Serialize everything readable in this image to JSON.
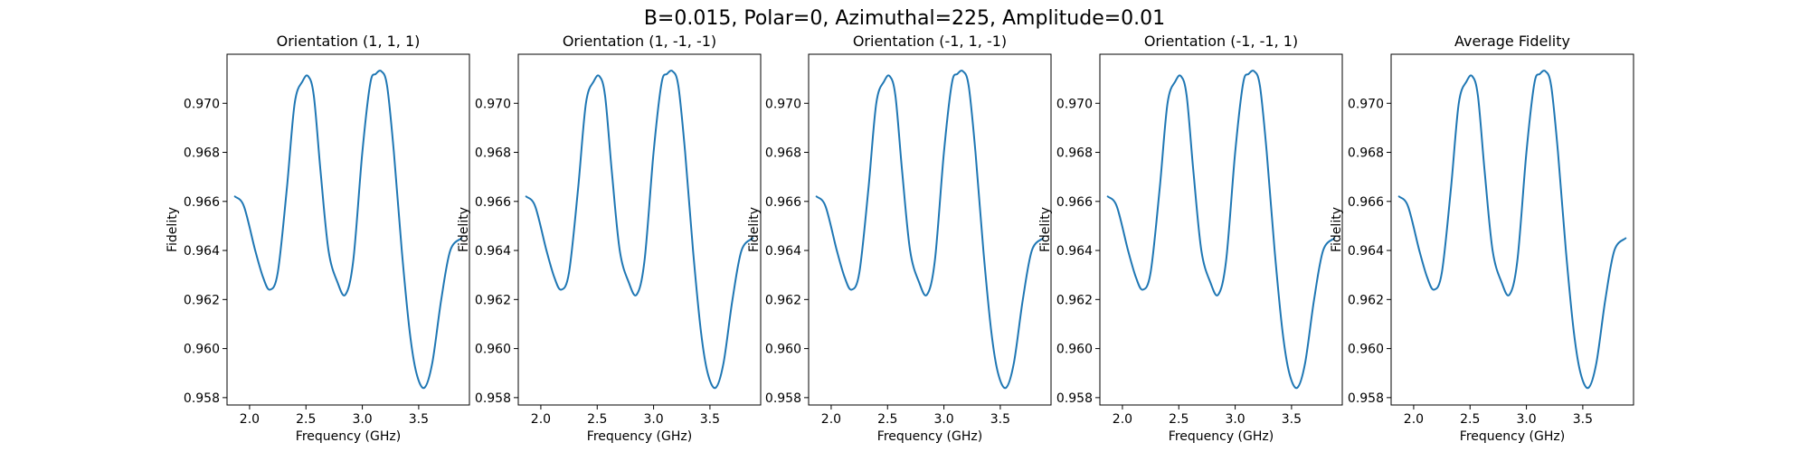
{
  "figure": {
    "suptitle": "B=0.015, Polar=0, Azimuthal=225, Amplitude=0.01"
  },
  "chart_data": [
    {
      "type": "line",
      "title": "Orientation (1, 1, 1)",
      "xlabel": "Frequency (GHz)",
      "ylabel": "Fidelity",
      "xlim": [
        1.8,
        3.95
      ],
      "ylim": [
        0.9577,
        0.972
      ],
      "xticks": [
        "2.0",
        "2.5",
        "3.0",
        "3.5"
      ],
      "yticks": [
        "0.958",
        "0.960",
        "0.962",
        "0.964",
        "0.966",
        "0.968",
        "0.970"
      ],
      "grid": false,
      "series": [
        {
          "color": "#1f77b4",
          "x": [
            1.87,
            1.95,
            2.05,
            2.12,
            2.18,
            2.25,
            2.33,
            2.4,
            2.47,
            2.52,
            2.57,
            2.63,
            2.7,
            2.78,
            2.85,
            2.92,
            3.0,
            3.07,
            3.12,
            3.17,
            3.22,
            3.28,
            3.35,
            3.42,
            3.48,
            3.55,
            3.62,
            3.7,
            3.78,
            3.88
          ],
          "y": [
            0.9662,
            0.9658,
            0.964,
            0.9629,
            0.9624,
            0.9631,
            0.9665,
            0.97,
            0.9709,
            0.9711,
            0.9703,
            0.9672,
            0.964,
            0.9627,
            0.9622,
            0.9636,
            0.968,
            0.9708,
            0.9712,
            0.9713,
            0.9707,
            0.968,
            0.964,
            0.9607,
            0.959,
            0.9584,
            0.9594,
            0.962,
            0.964,
            0.9645
          ]
        }
      ]
    },
    {
      "type": "line",
      "title": "Orientation (1, -1, -1)",
      "xlabel": "Frequency (GHz)",
      "ylabel": "Fidelity",
      "xlim": [
        1.8,
        3.95
      ],
      "ylim": [
        0.9577,
        0.972
      ],
      "xticks": [
        "2.0",
        "2.5",
        "3.0",
        "3.5"
      ],
      "yticks": [
        "0.958",
        "0.960",
        "0.962",
        "0.964",
        "0.966",
        "0.968",
        "0.970"
      ],
      "grid": false,
      "series": [
        {
          "color": "#1f77b4",
          "x": [
            1.87,
            1.95,
            2.05,
            2.12,
            2.18,
            2.25,
            2.33,
            2.4,
            2.47,
            2.52,
            2.57,
            2.63,
            2.7,
            2.78,
            2.85,
            2.92,
            3.0,
            3.07,
            3.12,
            3.17,
            3.22,
            3.28,
            3.35,
            3.42,
            3.48,
            3.55,
            3.62,
            3.7,
            3.78,
            3.88
          ],
          "y": [
            0.9662,
            0.9658,
            0.964,
            0.9629,
            0.9624,
            0.9631,
            0.9665,
            0.97,
            0.9709,
            0.9711,
            0.9703,
            0.9672,
            0.964,
            0.9627,
            0.9622,
            0.9636,
            0.968,
            0.9708,
            0.9712,
            0.9713,
            0.9707,
            0.968,
            0.964,
            0.9607,
            0.959,
            0.9584,
            0.9594,
            0.962,
            0.964,
            0.9645
          ]
        }
      ]
    },
    {
      "type": "line",
      "title": "Orientation (-1, 1, -1)",
      "xlabel": "Frequency (GHz)",
      "ylabel": "Fidelity",
      "xlim": [
        1.8,
        3.95
      ],
      "ylim": [
        0.9577,
        0.972
      ],
      "xticks": [
        "2.0",
        "2.5",
        "3.0",
        "3.5"
      ],
      "yticks": [
        "0.958",
        "0.960",
        "0.962",
        "0.964",
        "0.966",
        "0.968",
        "0.970"
      ],
      "grid": false,
      "series": [
        {
          "color": "#1f77b4",
          "x": [
            1.87,
            1.95,
            2.05,
            2.12,
            2.18,
            2.25,
            2.33,
            2.4,
            2.47,
            2.52,
            2.57,
            2.63,
            2.7,
            2.78,
            2.85,
            2.92,
            3.0,
            3.07,
            3.12,
            3.17,
            3.22,
            3.28,
            3.35,
            3.42,
            3.48,
            3.55,
            3.62,
            3.7,
            3.78,
            3.88
          ],
          "y": [
            0.9662,
            0.9658,
            0.964,
            0.9629,
            0.9624,
            0.9631,
            0.9665,
            0.97,
            0.9709,
            0.9711,
            0.9703,
            0.9672,
            0.964,
            0.9627,
            0.9622,
            0.9636,
            0.968,
            0.9708,
            0.9712,
            0.9713,
            0.9707,
            0.968,
            0.964,
            0.9607,
            0.959,
            0.9584,
            0.9594,
            0.962,
            0.964,
            0.9645
          ]
        }
      ]
    },
    {
      "type": "line",
      "title": "Orientation (-1, -1, 1)",
      "xlabel": "Frequency (GHz)",
      "ylabel": "Fidelity",
      "xlim": [
        1.8,
        3.95
      ],
      "ylim": [
        0.9577,
        0.972
      ],
      "xticks": [
        "2.0",
        "2.5",
        "3.0",
        "3.5"
      ],
      "yticks": [
        "0.958",
        "0.960",
        "0.962",
        "0.964",
        "0.966",
        "0.968",
        "0.970"
      ],
      "grid": false,
      "series": [
        {
          "color": "#1f77b4",
          "x": [
            1.87,
            1.95,
            2.05,
            2.12,
            2.18,
            2.25,
            2.33,
            2.4,
            2.47,
            2.52,
            2.57,
            2.63,
            2.7,
            2.78,
            2.85,
            2.92,
            3.0,
            3.07,
            3.12,
            3.17,
            3.22,
            3.28,
            3.35,
            3.42,
            3.48,
            3.55,
            3.62,
            3.7,
            3.78,
            3.88
          ],
          "y": [
            0.9662,
            0.9658,
            0.964,
            0.9629,
            0.9624,
            0.9631,
            0.9665,
            0.97,
            0.9709,
            0.9711,
            0.9703,
            0.9672,
            0.964,
            0.9627,
            0.9622,
            0.9636,
            0.968,
            0.9708,
            0.9712,
            0.9713,
            0.9707,
            0.968,
            0.964,
            0.9607,
            0.959,
            0.9584,
            0.9594,
            0.962,
            0.964,
            0.9645
          ]
        }
      ]
    },
    {
      "type": "line",
      "title": "Average Fidelity",
      "xlabel": "Frequency (GHz)",
      "ylabel": "Fidelity",
      "xlim": [
        1.8,
        3.95
      ],
      "ylim": [
        0.9577,
        0.972
      ],
      "xticks": [
        "2.0",
        "2.5",
        "3.0",
        "3.5"
      ],
      "yticks": [
        "0.958",
        "0.960",
        "0.962",
        "0.964",
        "0.966",
        "0.968",
        "0.970"
      ],
      "grid": false,
      "series": [
        {
          "color": "#1f77b4",
          "x": [
            1.87,
            1.95,
            2.05,
            2.12,
            2.18,
            2.25,
            2.33,
            2.4,
            2.47,
            2.52,
            2.57,
            2.63,
            2.7,
            2.78,
            2.85,
            2.92,
            3.0,
            3.07,
            3.12,
            3.17,
            3.22,
            3.28,
            3.35,
            3.42,
            3.48,
            3.55,
            3.62,
            3.7,
            3.78,
            3.88
          ],
          "y": [
            0.9662,
            0.9658,
            0.964,
            0.9629,
            0.9624,
            0.9631,
            0.9665,
            0.97,
            0.9709,
            0.9711,
            0.9703,
            0.9672,
            0.964,
            0.9627,
            0.9622,
            0.9636,
            0.968,
            0.9708,
            0.9712,
            0.9713,
            0.9707,
            0.968,
            0.964,
            0.9607,
            0.959,
            0.9584,
            0.9594,
            0.962,
            0.964,
            0.9645
          ]
        }
      ]
    }
  ]
}
